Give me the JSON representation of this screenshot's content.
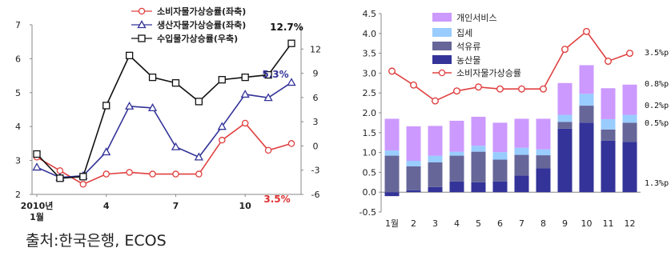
{
  "source_note": "출처:한국은행, ECOS",
  "chart_data": [
    {
      "type": "line",
      "x_tick_labels": [
        "2010년\n1월",
        "4",
        "7",
        "10"
      ],
      "ylim_left": [
        2,
        7
      ],
      "yticks_left": [
        "2",
        "3",
        "4",
        "5",
        "6",
        "7"
      ],
      "ylim_right": [
        -6,
        15
      ],
      "yticks_right": [
        "-6",
        "-3",
        "0",
        "3",
        "6",
        "9",
        "12"
      ],
      "legend_position": "top-center",
      "series": [
        {
          "name": "소비자물가상승률(좌축)",
          "axis": "left",
          "marker": "circle",
          "color": "#e04040",
          "values": [
            3.1,
            2.7,
            2.3,
            2.6,
            2.65,
            2.6,
            2.6,
            2.6,
            3.6,
            4.1,
            3.3,
            3.5
          ],
          "end_label": "3.5%"
        },
        {
          "name": "생산자물가상승률(좌축)",
          "axis": "left",
          "marker": "triangle",
          "color": "#333399",
          "values": [
            2.8,
            2.5,
            2.55,
            3.25,
            4.6,
            4.55,
            3.4,
            3.1,
            4.0,
            4.95,
            4.85,
            5.3
          ],
          "end_label": "5.3%"
        },
        {
          "name": "수입물가상승률(우축)",
          "axis": "right",
          "marker": "square",
          "color": "#111111",
          "values": [
            -1.0,
            -4.0,
            -3.8,
            5.0,
            11.2,
            8.5,
            7.8,
            5.5,
            8.2,
            8.5,
            8.8,
            12.7
          ],
          "end_label": "12.7%"
        }
      ]
    },
    {
      "type": "bar",
      "stacked": true,
      "categories": [
        "1월",
        "2",
        "3",
        "4",
        "5",
        "6",
        "7",
        "8",
        "9",
        "10",
        "11",
        "12"
      ],
      "ylim": [
        -0.5,
        4.5
      ],
      "yticks": [
        "-0.5",
        "0.0",
        "0.5",
        "1.0",
        "1.5",
        "2.0",
        "2.5",
        "3.0",
        "3.5",
        "4.0",
        "4.5"
      ],
      "legend_position": "top-left",
      "series": [
        {
          "name": "농산물",
          "color": "#333399",
          "values": [
            -0.1,
            0.05,
            0.13,
            0.27,
            0.25,
            0.27,
            0.42,
            0.6,
            1.6,
            1.75,
            1.3,
            1.27
          ]
        },
        {
          "name": "석유류",
          "color": "#666699",
          "values": [
            0.92,
            0.6,
            0.62,
            0.65,
            0.77,
            0.55,
            0.52,
            0.33,
            0.17,
            0.43,
            0.28,
            0.48
          ]
        },
        {
          "name": "집세",
          "color": "#99ccff",
          "values": [
            0.13,
            0.14,
            0.17,
            0.1,
            0.15,
            0.19,
            0.18,
            0.15,
            0.18,
            0.3,
            0.26,
            0.2
          ]
        },
        {
          "name": "개인서비스",
          "color": "#cc99ff",
          "values": [
            0.8,
            0.87,
            0.75,
            0.78,
            0.73,
            0.74,
            0.73,
            0.77,
            0.8,
            0.72,
            0.78,
            0.76
          ]
        }
      ],
      "line_series": {
        "name": "소비자물가상승률",
        "color": "#e04040",
        "values": [
          3.05,
          2.7,
          2.3,
          2.55,
          2.65,
          2.6,
          2.6,
          2.6,
          3.6,
          4.05,
          3.3,
          3.5
        ]
      },
      "annotations": [
        "3.5%p",
        "0.8%p",
        "0.2%p",
        "0.5%p",
        "1.3%p"
      ]
    }
  ]
}
